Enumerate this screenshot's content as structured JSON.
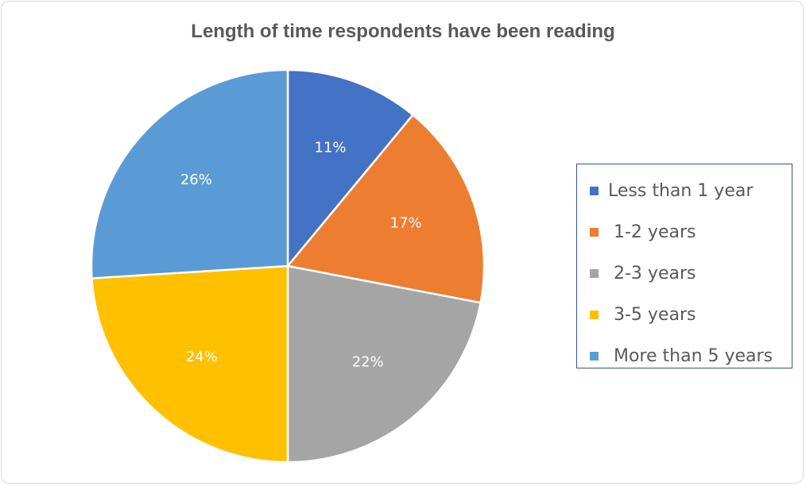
{
  "chart_data": {
    "type": "pie",
    "title": "Length of time respondents have been reading",
    "categories": [
      "Less than 1 year",
      "1-2 years",
      "2-3 years",
      "3-5 years",
      "More than 5 years"
    ],
    "values": [
      11,
      17,
      22,
      24,
      26
    ],
    "value_labels": [
      "11%",
      "17%",
      "22%",
      "24%",
      "26%"
    ],
    "colors": [
      "#4472c4",
      "#ed7d31",
      "#a5a5a5",
      "#ffc000",
      "#5b9bd5"
    ],
    "legend_position": "right",
    "legend_labels": [
      "Less than 1 year",
      " 1-2 years",
      " 2-3 years",
      " 3-5 years",
      " More than 5 years"
    ]
  }
}
